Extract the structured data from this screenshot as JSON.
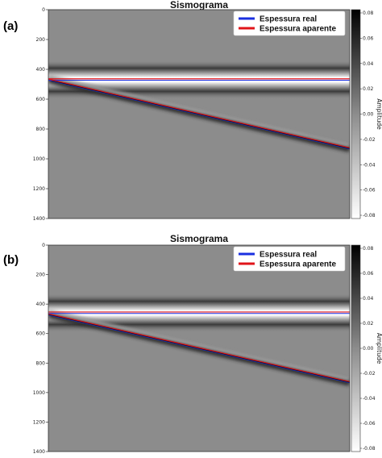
{
  "chart_data": [
    {
      "panel_label": "(a)",
      "type": "heatmap",
      "title": "Sismograma",
      "y_ticks": [
        0,
        200,
        400,
        600,
        800,
        1000,
        1200,
        1400
      ],
      "ylim": [
        0,
        1400
      ],
      "x_ticks_shown": false,
      "grid": false,
      "legend_position": "top-right",
      "series": [
        {
          "name": "Espessura real",
          "color": "#1a2fe0"
        },
        {
          "name": "Espessura aparente",
          "color": "#e0141a"
        }
      ],
      "reflectors": {
        "horizontal_depth": 470,
        "dipping_start_depth": 470,
        "dipping_end_depth": 930
      },
      "colorbar": {
        "label": "Amplitude",
        "ticks": [
          0.08,
          0.06,
          0.04,
          0.02,
          0.0,
          -0.02,
          -0.04,
          -0.06,
          -0.08
        ],
        "tick_labels": [
          "0.08",
          "0.06",
          "0.04",
          "0.02",
          "0.00",
          "-0.02",
          "-0.04",
          "-0.06",
          "-0.08"
        ],
        "range": [
          -0.08,
          0.08
        ]
      }
    },
    {
      "panel_label": "(b)",
      "type": "heatmap",
      "title": "Sismograma",
      "y_ticks": [
        0,
        200,
        400,
        600,
        800,
        1000,
        1200,
        1400
      ],
      "ylim": [
        0,
        1400
      ],
      "x_ticks_shown": false,
      "grid": false,
      "legend_position": "top-right",
      "series": [
        {
          "name": "Espessura real",
          "color": "#1a2fe0"
        },
        {
          "name": "Espessura aparente",
          "color": "#e0141a"
        }
      ],
      "reflectors": {
        "horizontal_depth": 460,
        "dipping_start_depth": 470,
        "dipping_end_depth": 930
      },
      "colorbar": {
        "label": "Amplitude",
        "ticks": [
          0.08,
          0.06,
          0.04,
          0.02,
          0.0,
          -0.02,
          -0.04,
          -0.06,
          -0.08
        ],
        "tick_labels": [
          "0.08",
          "0.06",
          "0.04",
          "0.02",
          "0.00",
          "-0.02",
          "-0.04",
          "-0.06",
          "-0.08"
        ],
        "range": [
          -0.08,
          0.08
        ]
      }
    }
  ]
}
